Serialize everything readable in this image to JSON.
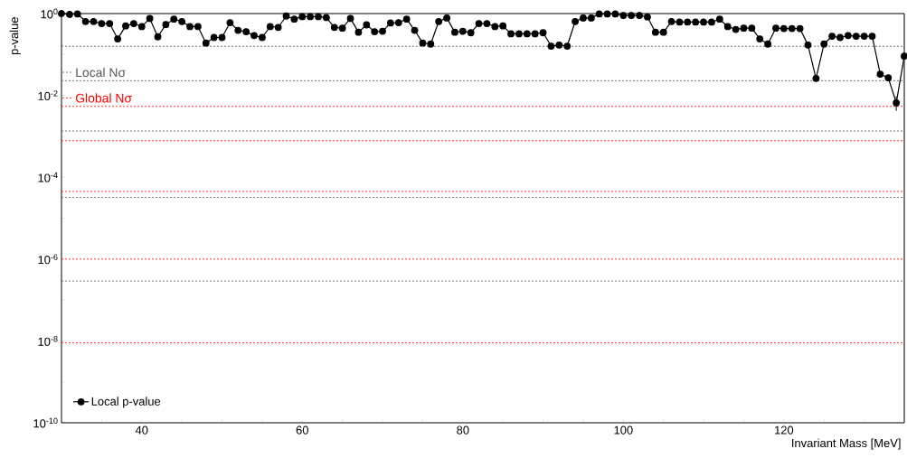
{
  "chart_data": {
    "type": "line",
    "ylabel": "p-value",
    "xlabel": "Invariant Mass [MeV]",
    "x": [
      30,
      31,
      32,
      33,
      34,
      35,
      36,
      37,
      38,
      39,
      40,
      41,
      42,
      43,
      44,
      45,
      46,
      47,
      48,
      49,
      50,
      51,
      52,
      53,
      54,
      55,
      56,
      57,
      58,
      59,
      60,
      61,
      62,
      63,
      64,
      65,
      66,
      67,
      68,
      69,
      70,
      71,
      72,
      73,
      74,
      75,
      76,
      77,
      78,
      79,
      80,
      81,
      82,
      83,
      84,
      85,
      86,
      87,
      88,
      89,
      90,
      91,
      92,
      93,
      94,
      95,
      96,
      97,
      98,
      99,
      100,
      101,
      102,
      103,
      104,
      105,
      106,
      107,
      108,
      109,
      110,
      111,
      112,
      113,
      114,
      115,
      116,
      117,
      118,
      119,
      120,
      121,
      122,
      123,
      124,
      125,
      126,
      127,
      128,
      129,
      130,
      131,
      132,
      133,
      134,
      135
    ],
    "series": [
      {
        "name": "Local p-value",
        "color": "#000000",
        "values": [
          1.0,
          0.95,
          0.98,
          0.64,
          0.64,
          0.57,
          0.57,
          0.24,
          0.5,
          0.57,
          0.48,
          0.76,
          0.27,
          0.54,
          0.73,
          0.64,
          0.48,
          0.48,
          0.19,
          0.26,
          0.26,
          0.6,
          0.39,
          0.36,
          0.29,
          0.26,
          0.48,
          0.46,
          0.87,
          0.73,
          0.84,
          0.84,
          0.84,
          0.8,
          0.46,
          0.44,
          0.76,
          0.35,
          0.53,
          0.36,
          0.37,
          0.59,
          0.6,
          0.73,
          0.39,
          0.19,
          0.18,
          0.64,
          0.78,
          0.35,
          0.37,
          0.34,
          0.57,
          0.57,
          0.48,
          0.5,
          0.32,
          0.32,
          0.32,
          0.32,
          0.34,
          0.16,
          0.17,
          0.16,
          0.64,
          0.78,
          0.78,
          0.98,
          0.98,
          0.98,
          0.9,
          0.9,
          0.9,
          0.83,
          0.35,
          0.35,
          0.64,
          0.62,
          0.62,
          0.62,
          0.62,
          0.62,
          0.73,
          0.48,
          0.41,
          0.44,
          0.44,
          0.24,
          0.18,
          0.44,
          0.43,
          0.43,
          0.43,
          0.17,
          0.026,
          0.18,
          0.28,
          0.26,
          0.29,
          0.28,
          0.28,
          0.28,
          0.033,
          0.027,
          0.0066,
          0.091
        ],
        "errors": [
          null,
          null,
          null,
          null,
          null,
          null,
          null,
          null,
          null,
          null,
          null,
          null,
          null,
          null,
          null,
          null,
          null,
          null,
          null,
          null,
          null,
          null,
          null,
          null,
          null,
          null,
          null,
          null,
          null,
          null,
          null,
          null,
          null,
          null,
          null,
          null,
          null,
          null,
          null,
          null,
          null,
          null,
          null,
          null,
          null,
          null,
          null,
          null,
          null,
          null,
          null,
          null,
          null,
          null,
          null,
          null,
          null,
          null,
          null,
          null,
          null,
          null,
          null,
          null,
          null,
          null,
          null,
          null,
          null,
          null,
          null,
          null,
          null,
          null,
          null,
          null,
          null,
          null,
          null,
          null,
          null,
          null,
          null,
          null,
          null,
          null,
          null,
          null,
          null,
          null,
          null,
          null,
          null,
          null,
          null,
          null,
          null,
          null,
          null,
          null,
          null,
          null,
          null,
          null,
          [
            0.0042,
            0.0095
          ],
          null
        ]
      }
    ],
    "marker": "circle",
    "line_style": "solid",
    "log": "y",
    "grid": false,
    "legend": "bottom left",
    "xlim": [
      30,
      135
    ],
    "xticks": [
      {
        "value": 35,
        "label": null
      },
      40,
      {
        "value": 45,
        "label": null
      },
      {
        "value": 50,
        "label": null
      },
      {
        "value": 55,
        "label": null
      },
      60,
      {
        "value": 65,
        "label": null
      },
      {
        "value": 70,
        "label": null
      },
      {
        "value": 75,
        "label": null
      },
      80,
      {
        "value": 85,
        "label": null
      },
      {
        "value": 90,
        "label": null
      },
      {
        "value": 95,
        "label": null
      },
      100,
      {
        "value": 105,
        "label": null
      },
      {
        "value": 110,
        "label": null
      },
      {
        "value": 115,
        "label": null
      },
      120,
      {
        "value": 125,
        "label": null
      },
      {
        "value": 130,
        "label": null
      }
    ],
    "ylim": [
      1e-10,
      1
    ],
    "yticks": [
      {
        "value": 1e-10,
        "label": "10$^{-10}$"
      },
      {
        "value": 1e-09,
        "label": null
      },
      {
        "value": 1e-08,
        "label": "10$^{-8}$"
      },
      {
        "value": 1e-07,
        "label": null
      },
      {
        "value": 1e-06,
        "label": "10$^{-6}$"
      },
      {
        "value": 1e-05,
        "label": null
      },
      {
        "value": 0.0001,
        "label": "10$^{-4}$"
      },
      {
        "value": 0.001,
        "label": null
      },
      {
        "value": 0.01,
        "label": "10$^{-2}$"
      },
      {
        "value": 0.1,
        "label": null
      },
      {
        "value": 1,
        "label": "10$^{0}$"
      }
    ],
    "ref_lines": [
      {
        "axis": "y",
        "value": 0.159,
        "color": "#555555",
        "line_style": "dashed"
      },
      {
        "axis": "y",
        "value": 0.0228,
        "color": "#555555",
        "line_style": "dashed",
        "label": "Local Nσ"
      },
      {
        "axis": "y",
        "value": 0.00135,
        "color": "#555555",
        "line_style": "dashed"
      },
      {
        "axis": "y",
        "value": 3.2e-05,
        "color": "#555555",
        "line_style": "dashed"
      },
      {
        "axis": "y",
        "value": 2.9e-07,
        "color": "#555555",
        "line_style": "dashed"
      },
      {
        "axis": "y",
        "value": 0.0054,
        "color": "#ff0000",
        "line_style": "dashed",
        "label": "Global Nσ"
      },
      {
        "axis": "y",
        "value": 0.00078,
        "color": "#ff0000",
        "line_style": "dashed"
      },
      {
        "axis": "y",
        "value": 4.5e-05,
        "color": "#ff0000",
        "line_style": "dashed"
      },
      {
        "axis": "y",
        "value": 1e-06,
        "color": "#ff0000",
        "line_style": "dashed"
      },
      {
        "axis": "y",
        "value": 9e-09,
        "color": "#ff0000",
        "line_style": "dashed"
      }
    ]
  }
}
